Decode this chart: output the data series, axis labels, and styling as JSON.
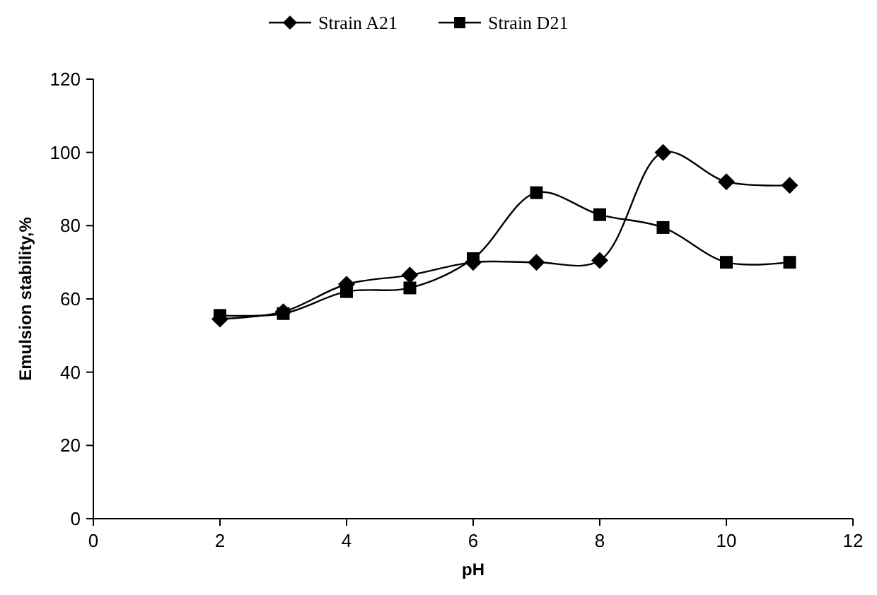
{
  "chart_data": {
    "type": "line",
    "xlabel": "pH",
    "ylabel": "Emulsion stability,%",
    "x": [
      2,
      3,
      4,
      5,
      6,
      7,
      8,
      9,
      10,
      11
    ],
    "series": [
      {
        "name": "Strain A21",
        "color": "#000000",
        "marker": "diamond",
        "values": [
          54.5,
          56.5,
          64,
          66.5,
          70,
          70,
          70.5,
          100,
          92,
          91
        ]
      },
      {
        "name": "Strain D21",
        "color": "#000000",
        "marker": "square",
        "values": [
          55.5,
          56,
          62,
          63,
          71,
          89,
          83,
          79.5,
          70,
          70
        ]
      }
    ],
    "xlim": [
      0,
      12
    ],
    "xticks": [
      0,
      2,
      4,
      6,
      8,
      10,
      12
    ],
    "ylim": [
      0,
      120
    ],
    "yticks": [
      0,
      20,
      40,
      60,
      80,
      100,
      120
    ],
    "grid": false,
    "legend": "top",
    "line_style": "solid"
  }
}
